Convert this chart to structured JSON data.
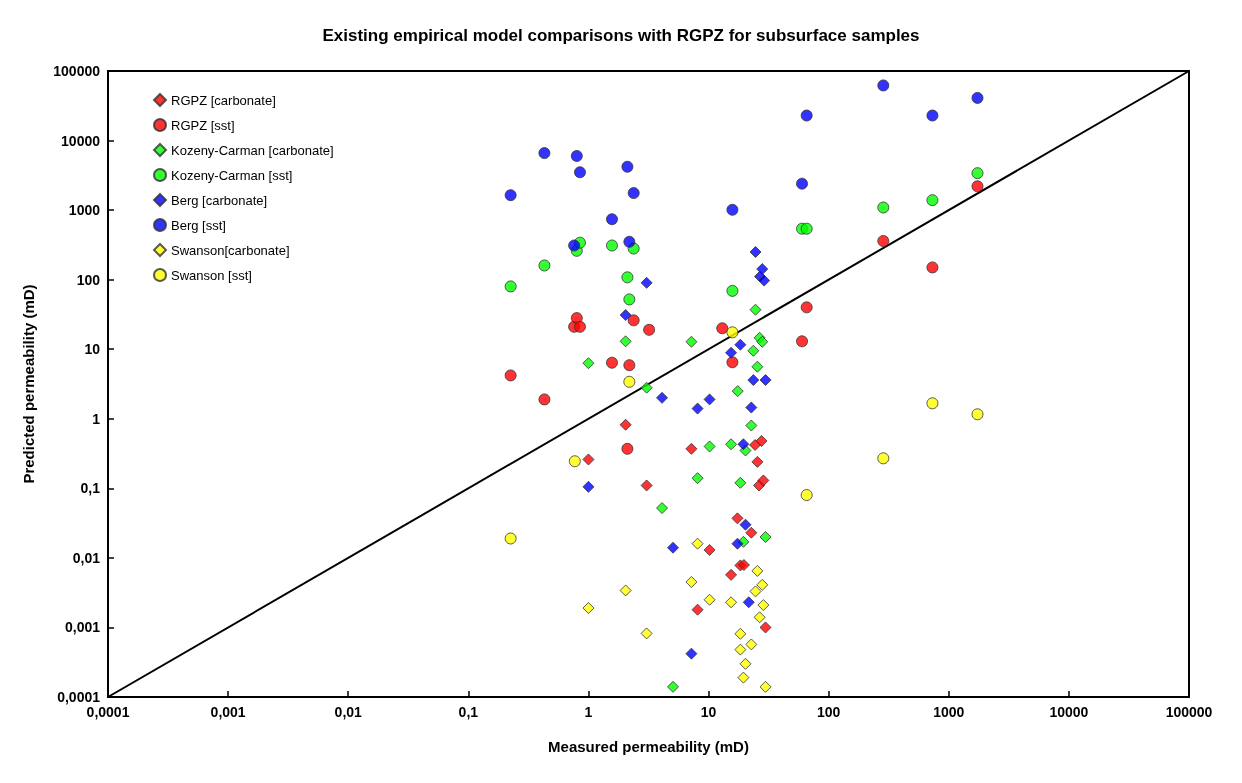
{
  "chart_data": {
    "type": "scatter",
    "title": "Existing empirical model comparisons with RGPZ for subsurface samples",
    "xlabel": "Measured permeability (mD)",
    "ylabel": "Predicted permeability (mD)",
    "log": "xy",
    "legend": "top left",
    "xlim": [
      0.0001,
      100000
    ],
    "ylim": [
      0.0001,
      100000
    ],
    "xticks": [
      {
        "value": 0.0001,
        "label": "0,0001"
      },
      {
        "value": 0.001,
        "label": "0,001"
      },
      {
        "value": 0.01,
        "label": "0,01"
      },
      {
        "value": 0.1,
        "label": "0,1"
      },
      1,
      10,
      100,
      1000,
      10000,
      100000
    ],
    "yticks": [
      {
        "value": 0.0001,
        "label": "0,0001"
      },
      {
        "value": 0.001,
        "label": "0,001"
      },
      {
        "value": 0.01,
        "label": "0,01"
      },
      {
        "value": 0.1,
        "label": "0,1"
      },
      1,
      10,
      100,
      1000,
      10000,
      100000
    ],
    "series": [
      {
        "name": "RGPZ [carbonate]",
        "color": "#ff0000",
        "marker": "diamond",
        "x": [
          2.04,
          1.0,
          3.05,
          7.2,
          24.4,
          27.6,
          25.5,
          26.3,
          28.6,
          17.4,
          22.7,
          10.2,
          15.4,
          18.4,
          19.7,
          8.1,
          29.8
        ],
        "values": [
          0.82,
          0.26,
          0.11,
          0.37,
          0.42,
          0.48,
          0.24,
          0.11,
          0.13,
          0.037,
          0.023,
          0.013,
          0.0057,
          0.0078,
          0.0079,
          0.0018,
          0.001
        ]
      },
      {
        "name": "RGPZ [sst]",
        "color": "#ff0000",
        "marker": "circle",
        "x": [
          0.225,
          0.43,
          0.76,
          0.8,
          0.85,
          1.57,
          2.19,
          2.11,
          2.38,
          3.2,
          13,
          15.8,
          60,
          65.6,
          285,
          731,
          1734
        ],
        "values": [
          4.2,
          1.9,
          21,
          28,
          21,
          6.4,
          5.9,
          0.37,
          26,
          19,
          20,
          6.5,
          13,
          40,
          360,
          150,
          2200
        ]
      },
      {
        "name": "Kozeny-Carman [carbonate]",
        "color": "#00ff00",
        "marker": "diamond",
        "x": [
          1.0,
          2.04,
          3.05,
          7.2,
          4.1,
          5.06,
          8.1,
          10.2,
          15.4,
          20.3,
          18.4,
          22.7,
          17.5,
          25.5,
          23.6,
          24.6,
          26.6,
          28,
          29.8,
          19.5
        ],
        "values": [
          6.3,
          13,
          2.8,
          12.8,
          0.052,
          0.00014,
          0.14,
          0.4,
          0.43,
          0.35,
          0.12,
          0.8,
          2.5,
          5.6,
          9.5,
          37,
          14.6,
          12.8,
          0.02,
          0.017
        ]
      },
      {
        "name": "Kozeny-Carman [sst]",
        "color": "#00ff00",
        "marker": "circle",
        "x": [
          0.225,
          0.43,
          0.8,
          0.85,
          1.57,
          2.38,
          2.11,
          2.19,
          15.8,
          60,
          65.6,
          285,
          731,
          1734
        ],
        "values": [
          80,
          160,
          260,
          340,
          310,
          280,
          108,
          52,
          69,
          540,
          540,
          1090,
          1390,
          3400
        ]
      },
      {
        "name": "Berg [carbonate]",
        "color": "#0000ff",
        "marker": "diamond",
        "x": [
          1.0,
          2.04,
          3.05,
          4.1,
          5.06,
          7.2,
          8.1,
          10.2,
          15.4,
          18.4,
          17.4,
          20.3,
          21.6,
          19.5,
          22.7,
          23.6,
          29.8,
          24.6,
          28,
          26.8,
          29
        ],
        "values": [
          0.105,
          31,
          90,
          2.0,
          0.014,
          0.00042,
          1.4,
          1.9,
          8.9,
          11.6,
          0.016,
          0.03,
          0.0023,
          0.43,
          1.45,
          3.6,
          3.6,
          250,
          142,
          111,
          97
        ]
      },
      {
        "name": "Berg [sst]",
        "color": "#0000ff",
        "marker": "circle",
        "x": [
          0.225,
          0.43,
          0.8,
          0.85,
          0.76,
          2.11,
          2.38,
          1.57,
          15.8,
          2.19,
          60,
          65.6,
          285,
          731,
          1734
        ],
        "values": [
          1640,
          6600,
          6000,
          3500,
          310,
          4200,
          1760,
          740,
          1010,
          350,
          2400,
          22900,
          62000,
          22900,
          41000
        ]
      },
      {
        "name": "Swanson[carbonate]",
        "color": "#ffff00",
        "marker": "diamond",
        "x": [
          1.0,
          2.04,
          3.05,
          7.2,
          8.1,
          10.2,
          15.4,
          18.4,
          18.4,
          22.7,
          20.3,
          19.5,
          25.5,
          28,
          24.6,
          28.6,
          26.6,
          29.8
        ],
        "values": [
          0.0019,
          0.0034,
          0.00082,
          0.0045,
          0.016,
          0.0025,
          0.0023,
          0.00081,
          0.00048,
          0.00057,
          0.0003,
          0.00019,
          0.0065,
          0.0041,
          0.0033,
          0.0021,
          0.0014,
          0.00014
        ]
      },
      {
        "name": "Swanson [sst]",
        "color": "#ffff00",
        "marker": "circle",
        "x": [
          0.225,
          0.77,
          2.19,
          15.8,
          65.6,
          285,
          731,
          1734
        ],
        "values": [
          0.019,
          0.245,
          3.4,
          17.5,
          0.08,
          0.27,
          1.67,
          1.16
        ]
      },
      {
        "type": "line",
        "color": "#000000",
        "marker": "none",
        "x": [
          0.0001,
          100000
        ],
        "values": [
          0.0001,
          100000
        ]
      }
    ]
  }
}
